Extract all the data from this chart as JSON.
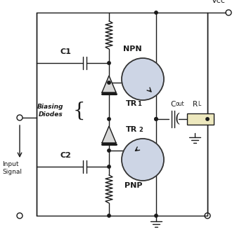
{
  "background_color": "#ffffff",
  "line_color": "#1a1a1a",
  "transistor_fill": "#cdd5e5",
  "transistor_circle_color": "#333333",
  "resistor_fill": "#ede8be",
  "figsize": [
    3.37,
    3.27
  ],
  "dpi": 100,
  "labels": {
    "vcc": "Vcc",
    "npn": "NPN",
    "pnp": "PNP",
    "tr1": "TR",
    "tr1_sub": "1",
    "tr2": "TR",
    "tr2_sub": "2",
    "c1": "C1",
    "c2": "C2",
    "cout": "C",
    "cout_sub": "out",
    "rl": "R",
    "rl_sub": "L",
    "biasing": "Biasing\nDiodes",
    "input": "Input\nSignal"
  }
}
